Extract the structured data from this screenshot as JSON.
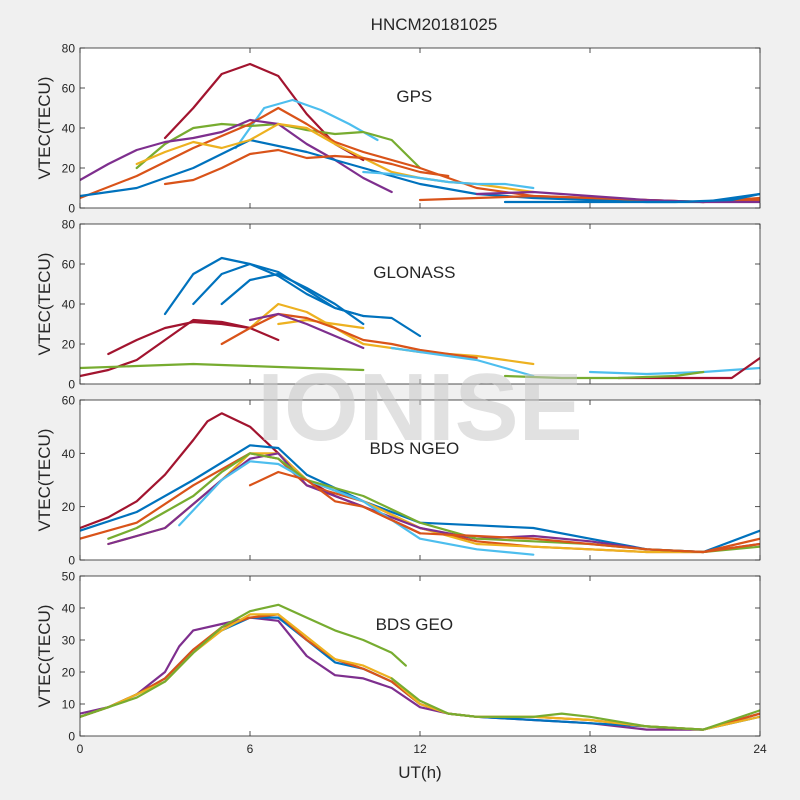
{
  "title": "HNCM20181025",
  "watermark": "IONISE",
  "xlabel": "UT(h)",
  "colors": [
    "#0072BD",
    "#D95319",
    "#EDB120",
    "#7E2F8E",
    "#77AC30",
    "#4DBEEE",
    "#A2142F"
  ],
  "chart_data": [
    {
      "type": "line",
      "annotation": "GPS",
      "ylabel": "VTEC(TECU)",
      "xlim": [
        0,
        24
      ],
      "ylim": [
        0,
        80
      ],
      "xticks": [
        0,
        6,
        12,
        18,
        24
      ],
      "yticks": [
        0,
        20,
        40,
        60,
        80
      ],
      "grid": false,
      "series": [
        {
          "color": "#A2142F",
          "x": [
            3,
            4,
            5,
            6,
            7,
            8,
            9,
            10
          ],
          "y": [
            35,
            50,
            67,
            72,
            66,
            47,
            32,
            24
          ]
        },
        {
          "color": "#4DBEEE",
          "x": [
            5.5,
            6.5,
            7.5,
            8.5,
            9.5,
            10.5
          ],
          "y": [
            30,
            50,
            54,
            49,
            42,
            34
          ]
        },
        {
          "color": "#77AC30",
          "x": [
            2,
            3,
            4,
            5,
            6,
            7,
            8,
            9,
            10,
            11,
            12
          ],
          "y": [
            20,
            32,
            40,
            42,
            41,
            42,
            39,
            37,
            38,
            34,
            20
          ]
        },
        {
          "color": "#D95319",
          "x": [
            0,
            2,
            4,
            6,
            7,
            8,
            9,
            10,
            12,
            14,
            16,
            18,
            20,
            22,
            24
          ],
          "y": [
            5,
            16,
            30,
            42,
            50,
            42,
            33,
            28,
            20,
            10,
            6,
            5,
            4,
            3,
            5
          ]
        },
        {
          "color": "#7E2F8E",
          "x": [
            0,
            1,
            2,
            3,
            4,
            5,
            6,
            7,
            8,
            9,
            10,
            11
          ],
          "y": [
            14,
            22,
            29,
            33,
            35,
            38,
            44,
            42,
            32,
            24,
            15,
            8
          ]
        },
        {
          "color": "#0072BD",
          "x": [
            0,
            2,
            4,
            6,
            8,
            10,
            12,
            14,
            16,
            18,
            20,
            22,
            24
          ],
          "y": [
            6,
            10,
            20,
            34,
            28,
            20,
            12,
            7,
            5,
            4,
            3,
            3,
            7
          ]
        },
        {
          "color": "#EDB120",
          "x": [
            2,
            3,
            4,
            5,
            6,
            7,
            8,
            9,
            10,
            11,
            12,
            13,
            14,
            15,
            16
          ],
          "y": [
            22,
            28,
            33,
            30,
            34,
            42,
            40,
            32,
            25,
            18,
            15,
            13,
            12,
            10,
            8
          ]
        },
        {
          "color": "#D95319",
          "x": [
            3,
            4,
            5,
            6,
            7,
            8,
            9,
            10,
            11,
            12,
            13
          ],
          "y": [
            12,
            14,
            20,
            27,
            29,
            25,
            26,
            25,
            22,
            18,
            16
          ]
        },
        {
          "color": "#4DBEEE",
          "x": [
            10,
            11,
            12,
            13,
            14,
            15,
            16
          ],
          "y": [
            18,
            17,
            15,
            13,
            12,
            12,
            10
          ]
        },
        {
          "color": "#D95319",
          "x": [
            12,
            14,
            16,
            18,
            20,
            22,
            24
          ],
          "y": [
            4,
            5,
            6,
            5,
            4,
            3,
            4
          ]
        },
        {
          "color": "#7E2F8E",
          "x": [
            14,
            16,
            18,
            20,
            22,
            24
          ],
          "y": [
            7,
            8,
            6,
            4,
            3,
            3
          ]
        },
        {
          "color": "#0072BD",
          "x": [
            15,
            17,
            19,
            21,
            23,
            24
          ],
          "y": [
            3,
            3,
            3,
            3,
            4,
            7
          ]
        }
      ]
    },
    {
      "type": "line",
      "annotation": "GLONASS",
      "ylabel": "VTEC(TECU)",
      "xlim": [
        0,
        24
      ],
      "ylim": [
        0,
        80
      ],
      "xticks": [
        0,
        6,
        12,
        18,
        24
      ],
      "yticks": [
        0,
        20,
        40,
        60,
        80
      ],
      "grid": false,
      "series": [
        {
          "color": "#0072BD",
          "x": [
            3,
            4,
            5,
            6,
            7,
            8,
            9,
            10,
            11,
            12
          ],
          "y": [
            35,
            55,
            63,
            60,
            54,
            45,
            38,
            34,
            33,
            24
          ]
        },
        {
          "color": "#0072BD",
          "x": [
            4,
            5,
            6,
            7,
            8,
            9,
            10
          ],
          "y": [
            40,
            55,
            60,
            56,
            47,
            38,
            34
          ]
        },
        {
          "color": "#0072BD",
          "x": [
            5,
            6,
            7,
            8,
            9,
            10
          ],
          "y": [
            40,
            52,
            55,
            48,
            40,
            30
          ]
        },
        {
          "color": "#A2142F",
          "x": [
            0,
            1,
            2,
            3,
            4,
            5,
            6,
            7
          ],
          "y": [
            4,
            7,
            12,
            22,
            32,
            31,
            28,
            22
          ]
        },
        {
          "color": "#A2142F",
          "x": [
            1,
            2,
            3,
            4,
            5,
            6
          ],
          "y": [
            15,
            22,
            28,
            31,
            30,
            28
          ]
        },
        {
          "color": "#EDB120",
          "x": [
            6,
            7,
            8,
            9,
            10,
            11,
            12,
            13,
            14,
            15,
            16
          ],
          "y": [
            28,
            40,
            36,
            28,
            20,
            18,
            16,
            15,
            14,
            12,
            10
          ]
        },
        {
          "color": "#EDB120",
          "x": [
            7,
            8,
            9,
            10
          ],
          "y": [
            30,
            32,
            30,
            28
          ]
        },
        {
          "color": "#D95319",
          "x": [
            5,
            6,
            7,
            8,
            9,
            10,
            11,
            12,
            13,
            14
          ],
          "y": [
            20,
            28,
            35,
            33,
            28,
            22,
            20,
            17,
            15,
            13
          ]
        },
        {
          "color": "#7E2F8E",
          "x": [
            6,
            7,
            8,
            9,
            10
          ],
          "y": [
            32,
            35,
            30,
            24,
            18
          ]
        },
        {
          "color": "#4DBEEE",
          "x": [
            11,
            12,
            13,
            14,
            15,
            16
          ],
          "y": [
            18,
            16,
            14,
            12,
            8,
            4
          ]
        },
        {
          "color": "#77AC30",
          "x": [
            0,
            2,
            4,
            6,
            8,
            10
          ],
          "y": [
            8,
            9,
            10,
            9,
            8,
            7
          ]
        },
        {
          "color": "#4DBEEE",
          "x": [
            18,
            20,
            22,
            24
          ],
          "y": [
            6,
            5,
            6,
            8
          ]
        },
        {
          "color": "#A2142F",
          "x": [
            19,
            21,
            23,
            24
          ],
          "y": [
            3,
            3,
            3,
            13
          ]
        },
        {
          "color": "#77AC30",
          "x": [
            15,
            17,
            19,
            21,
            22
          ],
          "y": [
            4,
            3,
            3,
            4,
            6
          ]
        }
      ]
    },
    {
      "type": "line",
      "annotation": "BDS NGEO",
      "ylabel": "VTEC(TECU)",
      "xlim": [
        0,
        24
      ],
      "ylim": [
        0,
        60
      ],
      "xticks": [
        0,
        6,
        12,
        18,
        24
      ],
      "yticks": [
        0,
        20,
        40,
        60
      ],
      "grid": false,
      "series": [
        {
          "color": "#A2142F",
          "x": [
            0,
            1,
            2,
            3,
            4,
            4.5,
            5,
            6,
            7,
            8,
            9,
            10,
            11,
            12
          ],
          "y": [
            12,
            16,
            22,
            32,
            45,
            52,
            55,
            50,
            40,
            30,
            24,
            20,
            15,
            10
          ]
        },
        {
          "color": "#0072BD",
          "x": [
            0,
            2,
            4,
            6,
            7,
            8,
            10,
            12,
            14,
            16,
            18,
            20,
            22,
            24
          ],
          "y": [
            11,
            18,
            30,
            43,
            42,
            32,
            22,
            14,
            13,
            12,
            8,
            4,
            3,
            11
          ]
        },
        {
          "color": "#D95319",
          "x": [
            0,
            2,
            4,
            6,
            7,
            8,
            10,
            12,
            14,
            16,
            18,
            20,
            22,
            24
          ],
          "y": [
            8,
            14,
            28,
            40,
            38,
            28,
            22,
            12,
            7,
            5,
            4,
            3,
            3,
            8
          ]
        },
        {
          "color": "#EDB120",
          "x": [
            1,
            3,
            5,
            6,
            7,
            8,
            10,
            12,
            14,
            16,
            18,
            20,
            22
          ],
          "y": [
            6,
            12,
            30,
            40,
            40,
            30,
            22,
            12,
            6,
            5,
            4,
            3,
            3
          ]
        },
        {
          "color": "#7E2F8E",
          "x": [
            1,
            3,
            5,
            6,
            7,
            8,
            10,
            12,
            14,
            16,
            18,
            20,
            22,
            24
          ],
          "y": [
            6,
            12,
            30,
            38,
            40,
            28,
            20,
            12,
            8,
            9,
            7,
            4,
            3,
            6
          ]
        },
        {
          "color": "#4DBEEE",
          "x": [
            3.5,
            5,
            6,
            7,
            8,
            10,
            12,
            14,
            16
          ],
          "y": [
            13,
            30,
            37,
            36,
            30,
            22,
            8,
            4,
            2
          ]
        },
        {
          "color": "#77AC30",
          "x": [
            1,
            2,
            3,
            4,
            5,
            6,
            7,
            8,
            10,
            12,
            14,
            16,
            18,
            20,
            22,
            24
          ],
          "y": [
            8,
            12,
            18,
            24,
            33,
            40,
            38,
            30,
            24,
            14,
            8,
            7,
            6,
            4,
            3,
            5
          ]
        },
        {
          "color": "#D95319",
          "x": [
            6,
            7,
            8,
            9,
            10,
            12,
            14,
            16,
            18,
            20,
            22,
            24
          ],
          "y": [
            28,
            33,
            30,
            22,
            20,
            10,
            9,
            8,
            6,
            4,
            3,
            6
          ]
        }
      ]
    },
    {
      "type": "line",
      "annotation": "BDS GEO",
      "ylabel": "VTEC(TECU)",
      "xlim": [
        0,
        24
      ],
      "ylim": [
        0,
        50
      ],
      "xticks": [
        0,
        6,
        12,
        18,
        24
      ],
      "yticks": [
        0,
        10,
        20,
        30,
        40,
        50
      ],
      "grid": false,
      "series": [
        {
          "color": "#7E2F8E",
          "x": [
            0,
            1,
            2,
            3,
            3.5,
            4,
            5,
            6,
            7,
            8,
            9,
            10,
            11,
            12,
            13,
            14,
            16,
            18,
            20,
            22,
            24
          ],
          "y": [
            7,
            9,
            13,
            20,
            28,
            33,
            35,
            37,
            36,
            25,
            19,
            18,
            15,
            9,
            7,
            6,
            5,
            4,
            2,
            2,
            7
          ]
        },
        {
          "color": "#0072BD",
          "x": [
            0,
            1,
            2,
            3,
            4,
            5,
            6,
            7,
            8,
            9,
            10,
            11,
            12,
            13,
            14,
            16,
            18,
            20,
            22,
            24
          ],
          "y": [
            6,
            9,
            13,
            18,
            27,
            33,
            37,
            37,
            30,
            23,
            21,
            17,
            10,
            7,
            6,
            5,
            4,
            3,
            2,
            6
          ]
        },
        {
          "color": "#D95319",
          "x": [
            0,
            1,
            2,
            3,
            4,
            5,
            6,
            7,
            8,
            9,
            10,
            11,
            12,
            13,
            14,
            16,
            18,
            20,
            22,
            24
          ],
          "y": [
            6,
            9,
            13,
            18,
            27,
            34,
            37,
            38,
            30,
            24,
            21,
            17,
            10,
            7,
            6,
            6,
            5,
            3,
            2,
            7
          ]
        },
        {
          "color": "#EDB120",
          "x": [
            0,
            1,
            2,
            3,
            4,
            5,
            6,
            7,
            8,
            9,
            10,
            11,
            12,
            13,
            14,
            16,
            18,
            20,
            22,
            24
          ],
          "y": [
            6,
            9,
            13,
            17,
            26,
            33,
            38,
            38,
            31,
            24,
            22,
            18,
            10,
            7,
            6,
            6,
            5,
            3,
            2,
            6
          ]
        },
        {
          "color": "#77AC30",
          "x": [
            0,
            1,
            2,
            3,
            4,
            5,
            6,
            7,
            8,
            9,
            10,
            10.5,
            11,
            11.5
          ],
          "y": [
            6,
            9,
            12,
            17,
            26,
            34,
            39,
            41,
            37,
            33,
            30,
            28,
            26,
            22
          ]
        },
        {
          "color": "#77AC30",
          "x": [
            11,
            12,
            13,
            14,
            16,
            17,
            18,
            20,
            22,
            24
          ],
          "y": [
            18,
            11,
            7,
            6,
            6,
            7,
            6,
            3,
            2,
            8
          ]
        }
      ]
    }
  ]
}
